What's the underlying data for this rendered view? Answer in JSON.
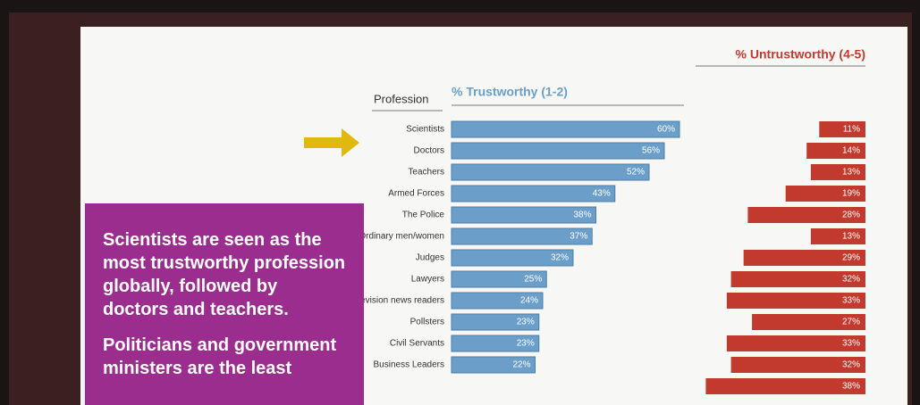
{
  "chart_data": {
    "type": "diverging-bar",
    "category_header": "Profession",
    "categories": [
      "Scientists",
      "Doctors",
      "Teachers",
      "Armed Forces",
      "The Police",
      "Ordinary men/women",
      "Judges",
      "Lawyers",
      "Television news readers",
      "Pollsters",
      "Civil Servants",
      "Business Leaders",
      null
    ],
    "series": [
      {
        "name": "% Trustworthy (1-2)",
        "color": "#6b9fca",
        "values": [
          60,
          56,
          52,
          43,
          38,
          37,
          32,
          25,
          24,
          23,
          23,
          22,
          null
        ],
        "value_labels": [
          "60%",
          "56%",
          "52%",
          "43%",
          "38%",
          "37%",
          "32%",
          "25%",
          "24%",
          "23%",
          "23%",
          "22%",
          null
        ]
      },
      {
        "name": "% Untrustworthy (4-5)",
        "color": "#c23a2e",
        "values": [
          11,
          14,
          13,
          19,
          28,
          13,
          29,
          32,
          33,
          27,
          33,
          32,
          38
        ],
        "value_labels": [
          "11%",
          "14%",
          "13%",
          "19%",
          "28%",
          "13%",
          "29%",
          "32%",
          "33%",
          "27%",
          "33%",
          "32%",
          "38%"
        ]
      }
    ],
    "annotations": [
      "Scientists are seen as the most trustworthy profession globally, followed by doctors and teachers.",
      "Politicians and government ministers are the least"
    ]
  }
}
